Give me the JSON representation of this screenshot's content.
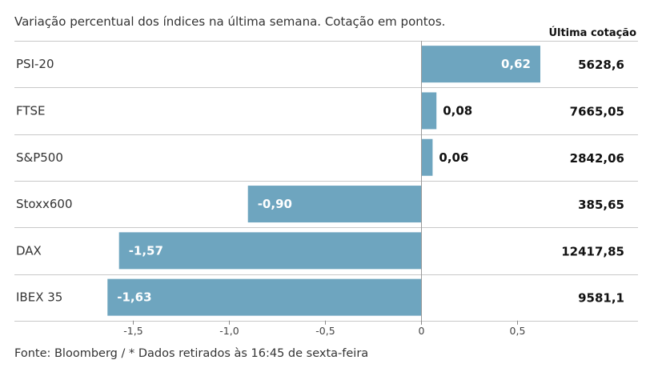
{
  "subtitle": "Variação percentual dos índices na última semana. Cotação em pontos.",
  "quote_header": "Última cotação",
  "source": "Fonte: Bloomberg / * Dados retirados às 16:45 de sexta-feira",
  "chart_data": {
    "type": "bar",
    "orientation": "horizontal",
    "categories": [
      "PSI-20",
      "FTSE",
      "S&P500",
      "Stoxx600",
      "DAX",
      "IBEX 35"
    ],
    "values": [
      0.62,
      0.08,
      0.06,
      -0.9,
      -1.57,
      -1.63
    ],
    "value_labels": [
      "0,62",
      "0,08",
      "0,06",
      "-0,90",
      "-1,57",
      "-1,63"
    ],
    "last_quotes": [
      "5628,6",
      "7665,05",
      "2842,06",
      "385,65",
      "12417,85",
      "9581,1"
    ],
    "xticks": [
      -1.5,
      -1.0,
      -0.5,
      0,
      0.5
    ],
    "xtick_labels": [
      "-1,5",
      "-1,0",
      "-0,5",
      "0",
      "0,5"
    ],
    "xlim": [
      -1.63,
      0.62
    ],
    "bar_color": "#6ea5bf",
    "grid_color": "#c8c8c8"
  }
}
